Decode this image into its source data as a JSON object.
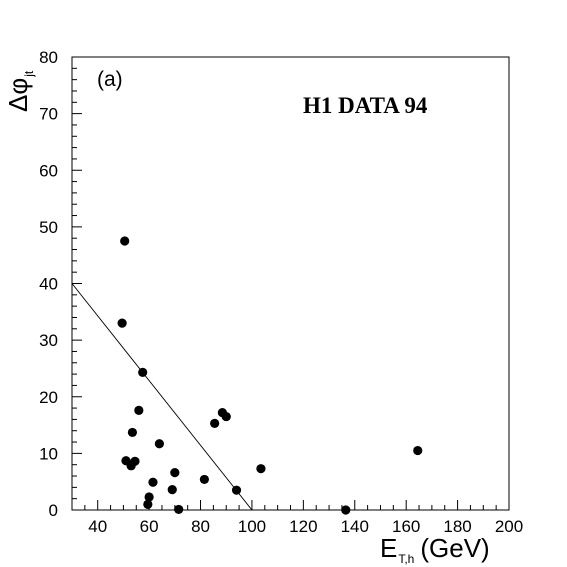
{
  "chart_data": {
    "type": "scatter",
    "panel_label": "(a)",
    "annotation": "H1 DATA 94",
    "xlabel": {
      "main": "E",
      "sub": "T,h",
      "unit": "(GeV)"
    },
    "ylabel": {
      "main": "Δφ",
      "sub": "jt"
    },
    "xlim": [
      30,
      200
    ],
    "ylim": [
      0,
      80
    ],
    "x_ticks": [
      "40",
      "60",
      "80",
      "100",
      "120",
      "140",
      "160",
      "180",
      "200"
    ],
    "y_ticks": [
      "0",
      "10",
      "20",
      "30",
      "40",
      "50",
      "60",
      "70",
      "80"
    ],
    "grid": false,
    "line": {
      "x": [
        30,
        100
      ],
      "y": [
        40,
        0
      ]
    },
    "series": [
      {
        "points": [
          {
            "x": 50.5,
            "y": 47.5
          },
          {
            "x": 49.5,
            "y": 33.0
          },
          {
            "x": 57.5,
            "y": 24.3
          },
          {
            "x": 56.0,
            "y": 17.6
          },
          {
            "x": 53.5,
            "y": 13.7
          },
          {
            "x": 51.0,
            "y": 8.7
          },
          {
            "x": 53.0,
            "y": 7.8
          },
          {
            "x": 54.5,
            "y": 8.6
          },
          {
            "x": 60.0,
            "y": 2.3
          },
          {
            "x": 59.5,
            "y": 1.0
          },
          {
            "x": 61.5,
            "y": 4.9
          },
          {
            "x": 64.0,
            "y": 11.7
          },
          {
            "x": 70.0,
            "y": 6.6
          },
          {
            "x": 69.0,
            "y": 3.6
          },
          {
            "x": 71.5,
            "y": 0.1
          },
          {
            "x": 81.5,
            "y": 5.4
          },
          {
            "x": 85.5,
            "y": 15.3
          },
          {
            "x": 88.5,
            "y": 17.2
          },
          {
            "x": 90.0,
            "y": 16.5
          },
          {
            "x": 94.0,
            "y": 3.5
          },
          {
            "x": 103.5,
            "y": 7.3
          },
          {
            "x": 136.5,
            "y": 0.0
          },
          {
            "x": 164.5,
            "y": 10.5
          }
        ]
      }
    ]
  }
}
